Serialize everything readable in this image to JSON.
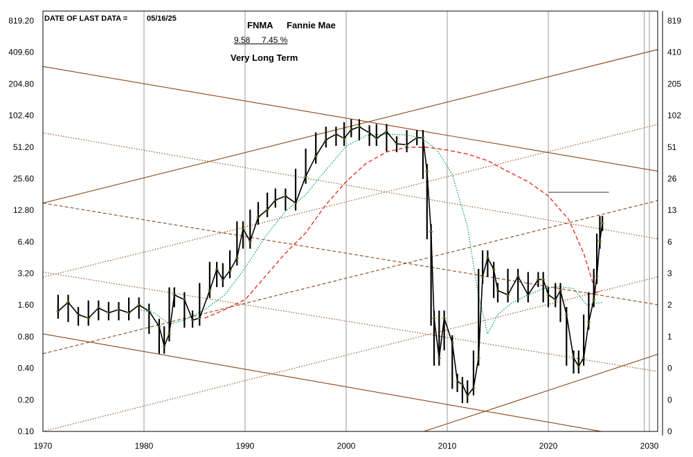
{
  "header": {
    "last_data_label": "DATE OF LAST DATA =",
    "last_data_date": "05/16/25",
    "ticker": "FNMA",
    "company": "Fannie Mae",
    "stat_price": "9.58",
    "stat_pct": "7.45 %",
    "horizon": "Very Long Term"
  },
  "chart_data": {
    "type": "line",
    "title": "FNMA Fannie Mae",
    "xlabel": "",
    "ylabel": "",
    "xlim": [
      1970,
      2031
    ],
    "ylim": [
      0.1,
      819.2
    ],
    "y_scale": "log2",
    "x_ticks": [
      "1970",
      "1980",
      "1990",
      "2000",
      "2010",
      "2020",
      "2030"
    ],
    "y_ticks_left": [
      "819.20",
      "409.60",
      "204.80",
      "102.40",
      "51.20",
      "25.60",
      "12.80",
      "6.40",
      "3.20",
      "1.60",
      "0.80",
      "0.40",
      "0.20",
      "0.10"
    ],
    "y_ticks_right": [
      "819",
      "410",
      "205",
      "102",
      "51",
      "26",
      "13",
      "6",
      "3",
      "2",
      "1",
      "0",
      "0",
      "0"
    ],
    "grid": "vertical",
    "colors": {
      "price": "#000000",
      "price_highlight": "#7a9a2e",
      "ma_short": "#00a060",
      "ma_long": "#e03020",
      "trendline": "#8b4513",
      "level": "#777777"
    },
    "series": [
      {
        "style": "price bars",
        "points": [
          [
            1971.5,
            1.4
          ],
          [
            1972.5,
            1.7
          ],
          [
            1973.5,
            1.3
          ],
          [
            1974.5,
            1.2
          ],
          [
            1975.5,
            1.5
          ],
          [
            1976.5,
            1.35
          ],
          [
            1977.5,
            1.45
          ],
          [
            1978.5,
            1.35
          ],
          [
            1979.5,
            1.6
          ],
          [
            1980.5,
            1.4
          ],
          [
            1981.5,
            1.0
          ],
          [
            1982.0,
            0.65
          ],
          [
            1982.5,
            0.85
          ],
          [
            1983.0,
            2.0
          ],
          [
            1984.0,
            1.8
          ],
          [
            1984.8,
            1.15
          ],
          [
            1985.5,
            1.2
          ],
          [
            1986.5,
            2.2
          ],
          [
            1987.2,
            3.5
          ],
          [
            1987.8,
            2.8
          ],
          [
            1988.5,
            3.4
          ],
          [
            1989.2,
            4.5
          ],
          [
            1989.8,
            8.5
          ],
          [
            1990.5,
            6.5
          ],
          [
            1991.3,
            11.0
          ],
          [
            1992.2,
            13.0
          ],
          [
            1993.0,
            16.0
          ],
          [
            1994.0,
            17.5
          ],
          [
            1995.0,
            15.0
          ],
          [
            1996.0,
            27.0
          ],
          [
            1997.0,
            42.0
          ],
          [
            1998.0,
            60.0
          ],
          [
            1999.0,
            68.0
          ],
          [
            1999.8,
            62.0
          ],
          [
            2000.5,
            75.0
          ],
          [
            2001.3,
            80.0
          ],
          [
            2002.3,
            70.0
          ],
          [
            2003.0,
            62.0
          ],
          [
            2004.0,
            72.0
          ],
          [
            2005.0,
            55.0
          ],
          [
            2006.0,
            54.0
          ],
          [
            2007.0,
            63.0
          ],
          [
            2007.6,
            63.0
          ],
          [
            2008.0,
            30.0
          ],
          [
            2008.4,
            8.0
          ],
          [
            2008.7,
            1.2
          ],
          [
            2009.2,
            0.5
          ],
          [
            2009.7,
            1.2
          ],
          [
            2010.5,
            0.7
          ],
          [
            2011.0,
            0.3
          ],
          [
            2011.5,
            0.28
          ],
          [
            2012.0,
            0.22
          ],
          [
            2012.6,
            0.26
          ],
          [
            2013.1,
            0.5
          ],
          [
            2013.5,
            3.0
          ],
          [
            2014.0,
            4.5
          ],
          [
            2014.6,
            3.5
          ],
          [
            2015.0,
            2.2
          ],
          [
            2016.0,
            2.0
          ],
          [
            2017.0,
            3.0
          ],
          [
            2018.0,
            2.0
          ],
          [
            2019.0,
            2.8
          ],
          [
            2019.5,
            2.8
          ],
          [
            2020.0,
            2.0
          ],
          [
            2020.7,
            1.8
          ],
          [
            2021.2,
            2.2
          ],
          [
            2021.8,
            1.3
          ],
          [
            2022.5,
            0.5
          ],
          [
            2023.0,
            0.42
          ],
          [
            2023.5,
            0.5
          ],
          [
            2024.0,
            1.1
          ],
          [
            2024.5,
            1.8
          ],
          [
            2024.8,
            3.0
          ],
          [
            2025.1,
            6.5
          ],
          [
            2025.35,
            9.58
          ]
        ]
      },
      {
        "style": "dotted moving average",
        "points": [
          [
            1979.5,
            1.45
          ],
          [
            1981.0,
            1.35
          ],
          [
            1982.5,
            1.05
          ],
          [
            1984.0,
            1.15
          ],
          [
            1986.0,
            1.45
          ],
          [
            1988.0,
            2.0
          ],
          [
            1990.0,
            3.6
          ],
          [
            1992.0,
            7.2
          ],
          [
            1994.0,
            12.5
          ],
          [
            1996.0,
            18.0
          ],
          [
            1998.0,
            31.0
          ],
          [
            2000.0,
            52.0
          ],
          [
            2002.0,
            66.0
          ],
          [
            2004.0,
            68.0
          ],
          [
            2006.0,
            67.0
          ],
          [
            2007.5,
            62.0
          ],
          [
            2009.0,
            48.0
          ],
          [
            2010.5,
            28.0
          ],
          [
            2012.0,
            9.0
          ],
          [
            2013.0,
            2.2
          ],
          [
            2014.0,
            0.85
          ],
          [
            2015.0,
            1.3
          ],
          [
            2016.5,
            1.7
          ],
          [
            2018.0,
            2.0
          ],
          [
            2019.5,
            2.3
          ],
          [
            2021.0,
            2.4
          ],
          [
            2022.5,
            2.3
          ],
          [
            2023.8,
            1.6
          ],
          [
            2025.4,
            1.7
          ]
        ]
      },
      {
        "style": "dashed moving average",
        "points": [
          [
            1986.0,
            1.2
          ],
          [
            1988.0,
            1.45
          ],
          [
            1990.0,
            1.8
          ],
          [
            1992.0,
            3.0
          ],
          [
            1994.0,
            5.0
          ],
          [
            1996.0,
            7.8
          ],
          [
            1998.0,
            14.5
          ],
          [
            2000.0,
            24.0
          ],
          [
            2002.0,
            36.0
          ],
          [
            2004.0,
            46.0
          ],
          [
            2006.0,
            51.0
          ],
          [
            2008.0,
            51.0
          ],
          [
            2010.0,
            48.0
          ],
          [
            2012.0,
            44.0
          ],
          [
            2014.0,
            38.0
          ],
          [
            2016.0,
            30.0
          ],
          [
            2018.0,
            24.0
          ],
          [
            2020.0,
            17.5
          ],
          [
            2022.0,
            10.5
          ],
          [
            2023.5,
            5.0
          ],
          [
            2024.3,
            2.8
          ],
          [
            2024.7,
            2.1
          ],
          [
            2025.3,
            2.2
          ]
        ]
      },
      {
        "style": "trendlines (solid)",
        "lines": [
          [
            [
              1970,
              15.0
            ],
            [
              2031,
              440
            ]
          ],
          [
            [
              1970,
              300
            ],
            [
              2031,
              30
            ]
          ],
          [
            [
              1970,
              0.85
            ],
            [
              2031,
              0.08
            ]
          ],
          [
            [
              2007,
              0.095
            ],
            [
              2031,
              0.55
            ]
          ]
        ]
      },
      {
        "style": "trendlines (dotted)",
        "lines": [
          [
            [
              1970,
              70.0
            ],
            [
              2031,
              6.8
            ]
          ],
          [
            [
              1970,
              3.3
            ],
            [
              2031,
              0.37
            ]
          ],
          [
            [
              1970,
              2.95
            ],
            [
              2031,
              85.0
            ]
          ],
          [
            [
              1970,
              0.1
            ],
            [
              2031,
              3.0
            ]
          ]
        ]
      },
      {
        "style": "trendlines (dashed)",
        "lines": [
          [
            [
              1970,
              15.0
            ],
            [
              2031,
              1.6
            ]
          ],
          [
            [
              1970,
              0.55
            ],
            [
              2031,
              16.0
            ]
          ]
        ]
      },
      {
        "style": "level line",
        "lines": [
          [
            [
              2020,
              19.0
            ],
            [
              2026,
              19.0
            ]
          ]
        ]
      }
    ]
  }
}
